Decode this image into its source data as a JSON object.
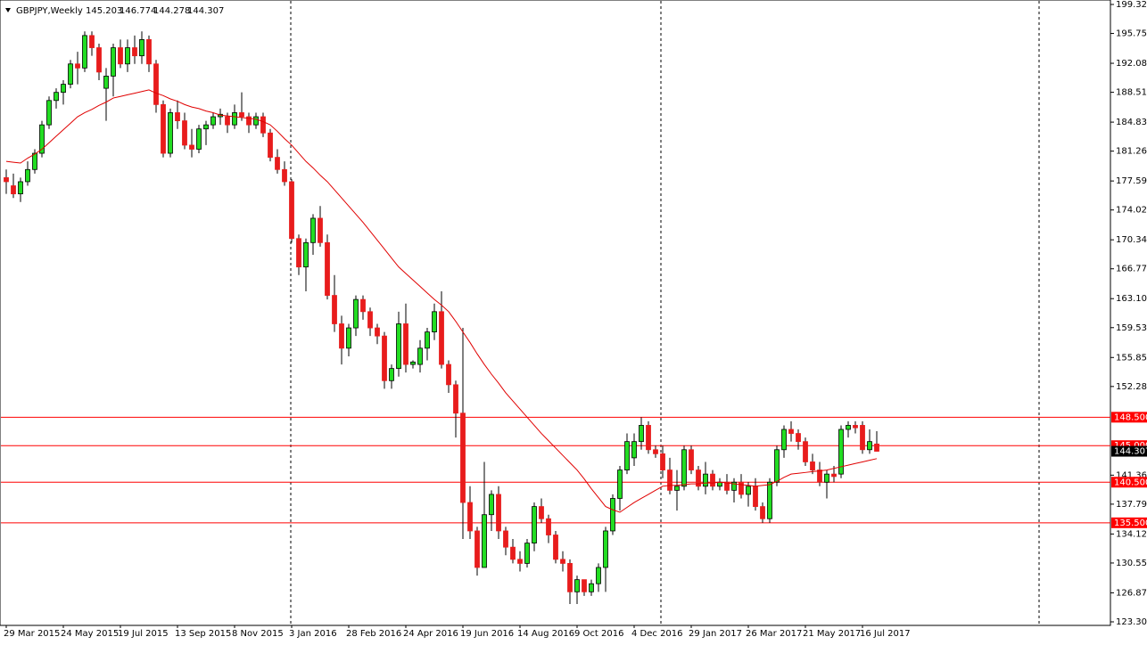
{
  "chart_data": {
    "type": "candlestick",
    "title": "GBPJPY,Weekly",
    "categories": [
      "29 Mar 2015",
      null,
      null,
      null,
      null,
      null,
      null,
      null,
      "24 May 2015",
      null,
      null,
      null,
      null,
      null,
      null,
      null,
      "19 Jul 2015",
      null,
      null,
      null,
      null,
      null,
      null,
      null,
      "13 Sep 2015",
      null,
      null,
      null,
      null,
      null,
      null,
      null,
      "8 Nov 2015",
      null,
      null,
      null,
      null,
      null,
      null,
      null,
      "3 Jan 2016",
      null,
      null,
      null,
      null,
      null,
      null,
      null,
      "28 Feb 2016",
      null,
      null,
      null,
      null,
      null,
      null,
      null,
      "24 Apr 2016",
      null,
      null,
      null,
      null,
      null,
      null,
      null,
      "19 Jun 2016",
      null,
      null,
      null,
      null,
      null,
      null,
      null,
      "14 Aug 2016",
      null,
      null,
      null,
      null,
      null,
      null,
      null,
      "9 Oct 2016",
      null,
      null,
      null,
      null,
      null,
      null,
      null,
      "4 Dec 2016",
      null,
      null,
      null,
      null,
      null,
      null,
      null,
      "29 Jan 2017",
      null,
      null,
      null,
      null,
      null,
      null,
      null,
      "26 Mar 2017",
      null,
      null,
      null,
      null,
      null,
      null,
      null,
      "21 May 2017",
      null,
      null,
      null,
      null,
      null,
      null,
      null,
      "16 Jul 2017",
      null,
      null
    ],
    "open": [
      178,
      177,
      176,
      177.5,
      179,
      181,
      184.5,
      187.5,
      188.5,
      189.5,
      192,
      191.5,
      195.5,
      194,
      189,
      190.5,
      194,
      192,
      194,
      193,
      195,
      192,
      187,
      181,
      186,
      185,
      182,
      181.5,
      184,
      184.5,
      185.5,
      185.5,
      184.5,
      186,
      185.5,
      184.5,
      185.5,
      183.5,
      180.5,
      179,
      177.5,
      170.5,
      167,
      170,
      173,
      170,
      163.5,
      160,
      157,
      159.5,
      163,
      161.5,
      159.5,
      158.5,
      153,
      154.5,
      160,
      155,
      155,
      157,
      159,
      161.5,
      155,
      152.5,
      149,
      138,
      134.5,
      130,
      136.5,
      139,
      134.5,
      132.5,
      131,
      130.5,
      133,
      137.5,
      136,
      134,
      131,
      130.5,
      127,
      128.5,
      127,
      128,
      130,
      134.5,
      138.5,
      142,
      143.5,
      145.5,
      147.5,
      144.5,
      144,
      142,
      139.5,
      140,
      144.5,
      142,
      140,
      141.5,
      140,
      140.5,
      139.5,
      140.5,
      139,
      140,
      137.5,
      136,
      140.5,
      144.5,
      147,
      146.5,
      145.5,
      143,
      142,
      140.5,
      141.5,
      141.5,
      147,
      147.5,
      147.5,
      144.5,
      145.203
    ],
    "high": [
      179,
      178.5,
      178,
      180,
      181.5,
      185,
      188,
      189,
      190,
      192.5,
      193.5,
      196,
      196,
      194.5,
      191.5,
      194.5,
      195,
      195,
      195.5,
      196,
      195.5,
      192.5,
      187.5,
      186.5,
      187.5,
      186,
      184,
      184.5,
      185,
      186,
      186.5,
      186,
      187,
      188.5,
      186,
      186,
      186,
      184,
      181.5,
      180,
      177.8,
      171,
      170.5,
      173.5,
      174.5,
      171,
      166,
      161,
      160,
      163.5,
      163.5,
      162,
      160,
      159,
      155,
      161.5,
      162.5,
      155.5,
      158,
      159.5,
      162.5,
      164,
      155.5,
      153,
      159.5,
      140,
      135,
      143,
      139.5,
      140,
      135,
      133.5,
      132,
      133.5,
      138,
      138.5,
      136.5,
      134.5,
      132,
      131,
      129,
      128.5,
      128.5,
      130.5,
      135,
      139,
      142.5,
      146.5,
      146.5,
      148.5,
      148,
      145,
      145,
      143.5,
      142,
      145,
      145,
      142.5,
      143,
      142,
      141,
      141.5,
      141,
      141.5,
      140.5,
      141,
      138,
      141,
      145,
      147.5,
      148,
      147,
      146,
      144,
      143,
      142,
      142.5,
      147.5,
      148,
      148,
      148,
      147,
      146.774
    ],
    "low": [
      176,
      175.5,
      175,
      177,
      178.5,
      180.5,
      184,
      186.5,
      187,
      189,
      189.5,
      191,
      193,
      190,
      185,
      188,
      191.5,
      191,
      192,
      192,
      191,
      186,
      180.5,
      180.5,
      184,
      181.5,
      180.5,
      181,
      182,
      184,
      184.5,
      183.5,
      184,
      185,
      183.5,
      184,
      183,
      180,
      178.5,
      177,
      170,
      166,
      164,
      168.5,
      169.5,
      163,
      159,
      155,
      156,
      158.5,
      160.5,
      158.5,
      157.5,
      152,
      152,
      153.5,
      154,
      154.5,
      154,
      155.5,
      158,
      154.5,
      151.5,
      146,
      133.5,
      133.5,
      129,
      130,
      134.5,
      133.5,
      131.5,
      130.5,
      129.5,
      130,
      132,
      135.5,
      133,
      130.5,
      129.5,
      125.5,
      125.5,
      126.5,
      126.5,
      127,
      127,
      134,
      137,
      141.5,
      142.5,
      144.5,
      144,
      143.5,
      141,
      139,
      137,
      139.5,
      141.5,
      139.5,
      139,
      139.5,
      139.5,
      139,
      138,
      138.5,
      137.5,
      137,
      135.5,
      135.5,
      140,
      143.5,
      145.5,
      144.5,
      142.5,
      141.5,
      140,
      138.5,
      140.5,
      141,
      146,
      146.5,
      144,
      144,
      144.278
    ],
    "close": [
      177.5,
      176,
      177.5,
      179,
      181,
      184.5,
      187.5,
      188.5,
      189.5,
      192,
      191.5,
      195.5,
      194,
      191,
      190.5,
      194,
      192,
      194,
      193,
      195,
      192,
      187,
      181,
      186,
      185,
      182,
      181.5,
      184,
      184.5,
      185.5,
      185.8,
      184.5,
      186,
      185.5,
      184.5,
      185.5,
      183.5,
      180.5,
      179,
      177.5,
      170.5,
      167,
      170,
      173,
      170,
      163.5,
      160,
      157,
      159.5,
      163,
      161.5,
      159.5,
      158.5,
      153,
      154.5,
      160,
      155,
      155.3,
      157,
      159,
      161.5,
      155,
      152.5,
      149,
      138,
      134.5,
      130,
      136.5,
      139,
      134.5,
      132.5,
      131,
      130.5,
      133,
      137.5,
      136,
      134,
      131,
      130.5,
      127,
      128.5,
      127,
      128,
      130,
      134.5,
      138.5,
      142,
      145.5,
      145.5,
      147.5,
      144.5,
      144,
      142,
      139.5,
      140,
      144.5,
      142,
      140,
      141.5,
      140,
      140.5,
      139.5,
      140.5,
      139,
      140,
      137.5,
      136,
      140.5,
      144.5,
      147,
      146.5,
      145.5,
      143,
      142,
      140.5,
      141.5,
      141.2,
      147,
      147.5,
      147.2,
      144.5,
      145.5,
      144.307
    ],
    "up_color": "#22dd22",
    "down_color": "#e81c1c",
    "moving_average": {
      "color": "#e00000",
      "values": [
        180.0,
        179.9,
        179.8,
        180.4,
        180.9,
        181.5,
        182.3,
        183.1,
        183.9,
        184.7,
        185.5,
        186.0,
        186.4,
        186.9,
        187.3,
        187.8,
        188.0,
        188.2,
        188.4,
        188.6,
        188.8,
        188.4,
        188.1,
        187.7,
        187.4,
        187.0,
        186.7,
        186.5,
        186.2,
        186.0,
        185.7,
        185.6,
        185.5,
        185.4,
        185.3,
        185.2,
        184.9,
        184.5,
        183.7,
        182.8,
        182.0,
        181.0,
        180.0,
        179.2,
        178.3,
        177.5,
        176.5,
        175.5,
        174.5,
        173.5,
        172.5,
        171.4,
        170.3,
        169.2,
        168.1,
        167.0,
        166.2,
        165.4,
        164.6,
        163.8,
        163.0,
        162.3,
        161.5,
        160.3,
        159.0,
        157.7,
        156.3,
        155.0,
        153.8,
        152.7,
        151.5,
        150.5,
        149.5,
        148.5,
        147.5,
        146.5,
        145.6,
        144.7,
        143.8,
        142.9,
        142.0,
        140.9,
        139.7,
        138.6,
        137.5,
        137.1,
        136.8,
        137.4,
        138.0,
        138.5,
        139.0,
        139.5,
        140.0,
        140.1,
        140.1,
        140.2,
        140.3,
        140.3,
        140.4,
        140.4,
        140.5,
        140.4,
        140.3,
        140.2,
        140.1,
        140.0,
        140.1,
        140.2,
        140.6,
        141.1,
        141.5,
        141.6,
        141.7,
        141.8,
        141.9,
        142.0,
        142.2,
        142.4,
        142.6,
        142.8,
        143.0,
        143.2,
        143.4
      ]
    },
    "levels": [
      {
        "value": 148.5,
        "label": "148.500"
      },
      {
        "value": 145,
        "label": "145.000"
      },
      {
        "value": 140.5,
        "label": "140.500"
      },
      {
        "value": 135.5,
        "label": "135.500"
      }
    ],
    "level_color": "#ff0000",
    "ylim": [
      123.305,
      199.325
    ],
    "yticks": [
      199.325,
      195.755,
      {
        "value": 192.08,
        "label": "192.080"
      },
      {
        "value": 188.51,
        "label": "188.510"
      },
      184.835,
      181.265,
      {
        "value": 177.59,
        "label": "177.590"
      },
      {
        "value": 174.02,
        "label": "174.020"
      },
      170.345,
      166.775,
      {
        "value": 163.1,
        "label": "163.100"
      },
      {
        "value": 159.53,
        "label": "159.530"
      },
      155.855,
      152.285,
      141.365,
      137.795,
      {
        "value": 134.12,
        "label": "134.120"
      },
      {
        "value": 130.55,
        "label": "130.550"
      },
      126.875,
      123.305
    ]
  }
}
